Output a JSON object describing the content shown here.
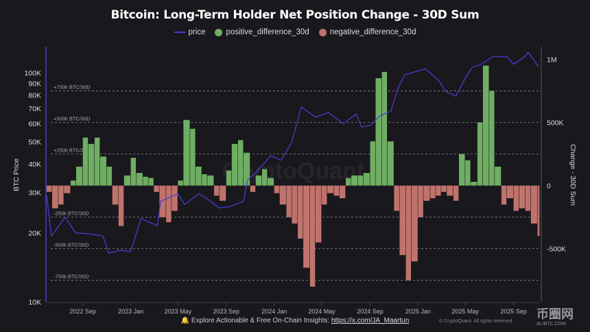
{
  "chart_data": {
    "type": "bar+line",
    "title": "Bitcoin: Long-Term Holder Net Position Change - 30D Sum",
    "legend": [
      {
        "name": "price",
        "color": "#4b3bd0",
        "marker": "line"
      },
      {
        "name": "positive_difference_30d",
        "color": "#6fae63",
        "marker": "circle"
      },
      {
        "name": "negative_difference_30d",
        "color": "#c0736c",
        "marker": "circle"
      }
    ],
    "legend_placement": "top-center",
    "left_axis": {
      "label": "BTC Price",
      "scale": "log",
      "range": [
        10000,
        130000
      ],
      "ticks": [
        {
          "v": 10000,
          "t": "10K"
        },
        {
          "v": 20000,
          "t": "20K"
        },
        {
          "v": 30000,
          "t": "30K"
        },
        {
          "v": 40000,
          "t": "40K"
        },
        {
          "v": 50000,
          "t": "50K"
        },
        {
          "v": 60000,
          "t": "60K"
        },
        {
          "v": 70000,
          "t": "70K"
        },
        {
          "v": 80000,
          "t": "80K"
        },
        {
          "v": 90000,
          "t": "90K"
        },
        {
          "v": 100000,
          "t": "100K"
        }
      ]
    },
    "right_axis": {
      "label": "Change - 30D Sum",
      "scale": "linear",
      "range": [
        -920000,
        1100000
      ],
      "ticks": [
        {
          "v": 1000000,
          "t": "1M"
        },
        {
          "v": 500000,
          "t": "500K"
        },
        {
          "v": 0,
          "t": "0"
        },
        {
          "v": -500000,
          "t": "-500K"
        }
      ]
    },
    "x_axis": {
      "range": [
        "2022-06-01",
        "2025-11-07"
      ],
      "ticks": [
        {
          "d": "2022-09-01",
          "t": "2022 Sep"
        },
        {
          "d": "2023-01-01",
          "t": "2023 Jan"
        },
        {
          "d": "2023-05-01",
          "t": "2023 May"
        },
        {
          "d": "2023-09-01",
          "t": "2023 Sep"
        },
        {
          "d": "2024-01-01",
          "t": "2024 Jan"
        },
        {
          "d": "2024-05-01",
          "t": "2024 May"
        },
        {
          "d": "2024-09-01",
          "t": "2024 Sep"
        },
        {
          "d": "2025-01-01",
          "t": "2025 Jan"
        },
        {
          "d": "2025-05-01",
          "t": "2025 May"
        },
        {
          "d": "2025-09-01",
          "t": "2025 Sep"
        }
      ]
    },
    "reference_lines": [
      {
        "v": 750000,
        "t": "+750k BTC/30D"
      },
      {
        "v": 500000,
        "t": "+500k BTC/30D"
      },
      {
        "v": 250000,
        "t": "+250k BTC/30D"
      },
      {
        "v": -250000,
        "t": "-250k BTC/30D"
      },
      {
        "v": -500000,
        "t": "-500k BTC/30D"
      },
      {
        "v": -750000,
        "t": "-750k BTC/30D"
      }
    ],
    "grid": false,
    "price": [
      [
        "2022-06-01",
        29000
      ],
      [
        "2022-06-13",
        19400
      ],
      [
        "2022-07-18",
        23400
      ],
      [
        "2022-08-14",
        20000
      ],
      [
        "2022-09-18",
        19800
      ],
      [
        "2022-10-22",
        19400
      ],
      [
        "2022-11-06",
        16300
      ],
      [
        "2022-12-05",
        16800
      ],
      [
        "2023-01-01",
        16600
      ],
      [
        "2023-01-27",
        23100
      ],
      [
        "2023-03-10",
        21500
      ],
      [
        "2023-03-18",
        27500
      ],
      [
        "2023-05-01",
        29600
      ],
      [
        "2023-05-18",
        26600
      ],
      [
        "2023-06-23",
        29600
      ],
      [
        "2023-07-10",
        28500
      ],
      [
        "2023-08-14",
        25700
      ],
      [
        "2023-09-10",
        26000
      ],
      [
        "2023-10-15",
        27500
      ],
      [
        "2023-10-25",
        34000
      ],
      [
        "2023-11-18",
        37000
      ],
      [
        "2023-12-23",
        43500
      ],
      [
        "2024-01-19",
        41500
      ],
      [
        "2024-02-15",
        50000
      ],
      [
        "2024-03-10",
        71000
      ],
      [
        "2024-04-15",
        64000
      ],
      [
        "2024-05-18",
        67000
      ],
      [
        "2024-06-24",
        60000
      ],
      [
        "2024-07-28",
        66000
      ],
      [
        "2024-08-10",
        58000
      ],
      [
        "2024-09-02",
        59000
      ],
      [
        "2024-09-27",
        65000
      ],
      [
        "2024-10-24",
        68000
      ],
      [
        "2024-11-10",
        85000
      ],
      [
        "2024-11-28",
        98000
      ],
      [
        "2024-12-24",
        101000
      ],
      [
        "2025-01-20",
        104000
      ],
      [
        "2025-02-24",
        92000
      ],
      [
        "2025-03-12",
        83000
      ],
      [
        "2025-04-07",
        79000
      ],
      [
        "2025-05-03",
        96000
      ],
      [
        "2025-05-20",
        106000
      ],
      [
        "2025-06-07",
        108000
      ],
      [
        "2025-07-12",
        118000
      ],
      [
        "2025-08-16",
        117000
      ],
      [
        "2025-09-01",
        109000
      ],
      [
        "2025-10-01",
        118000
      ],
      [
        "2025-10-08",
        123000
      ],
      [
        "2025-11-04",
        106000
      ]
    ],
    "change_30d": [
      [
        "2022-06-01",
        -50000
      ],
      [
        "2022-06-15",
        -180000
      ],
      [
        "2022-07-01",
        -150000
      ],
      [
        "2022-07-15",
        -60000
      ],
      [
        "2022-08-01",
        40000
      ],
      [
        "2022-08-15",
        150000
      ],
      [
        "2022-09-01",
        380000
      ],
      [
        "2022-09-15",
        330000
      ],
      [
        "2022-10-01",
        380000
      ],
      [
        "2022-10-15",
        230000
      ],
      [
        "2022-11-01",
        150000
      ],
      [
        "2022-11-15",
        -150000
      ],
      [
        "2022-12-01",
        -320000
      ],
      [
        "2022-12-15",
        80000
      ],
      [
        "2023-01-01",
        220000
      ],
      [
        "2023-01-15",
        100000
      ],
      [
        "2023-02-01",
        70000
      ],
      [
        "2023-02-15",
        60000
      ],
      [
        "2023-03-01",
        -50000
      ],
      [
        "2023-03-15",
        -250000
      ],
      [
        "2023-04-01",
        -290000
      ],
      [
        "2023-04-15",
        -200000
      ],
      [
        "2023-05-01",
        40000
      ],
      [
        "2023-05-15",
        520000
      ],
      [
        "2023-06-01",
        450000
      ],
      [
        "2023-06-15",
        150000
      ],
      [
        "2023-07-01",
        90000
      ],
      [
        "2023-07-15",
        80000
      ],
      [
        "2023-08-01",
        -80000
      ],
      [
        "2023-08-15",
        -120000
      ],
      [
        "2023-09-01",
        120000
      ],
      [
        "2023-09-15",
        330000
      ],
      [
        "2023-10-01",
        360000
      ],
      [
        "2023-10-15",
        260000
      ],
      [
        "2023-11-01",
        -50000
      ],
      [
        "2023-11-15",
        80000
      ],
      [
        "2023-12-01",
        130000
      ],
      [
        "2023-12-15",
        60000
      ],
      [
        "2024-01-01",
        -60000
      ],
      [
        "2024-01-15",
        -150000
      ],
      [
        "2024-02-01",
        -250000
      ],
      [
        "2024-02-15",
        -300000
      ],
      [
        "2024-03-01",
        -420000
      ],
      [
        "2024-03-15",
        -650000
      ],
      [
        "2024-04-01",
        -800000
      ],
      [
        "2024-04-15",
        -450000
      ],
      [
        "2024-05-01",
        -150000
      ],
      [
        "2024-05-15",
        -60000
      ],
      [
        "2024-06-01",
        -80000
      ],
      [
        "2024-06-15",
        -100000
      ],
      [
        "2024-07-01",
        60000
      ],
      [
        "2024-07-15",
        80000
      ],
      [
        "2024-08-01",
        80000
      ],
      [
        "2024-08-15",
        100000
      ],
      [
        "2024-09-01",
        350000
      ],
      [
        "2024-09-15",
        850000
      ],
      [
        "2024-10-01",
        900000
      ],
      [
        "2024-10-15",
        350000
      ],
      [
        "2024-11-01",
        -200000
      ],
      [
        "2024-11-15",
        -550000
      ],
      [
        "2024-12-01",
        -750000
      ],
      [
        "2024-12-15",
        -600000
      ],
      [
        "2025-01-01",
        -250000
      ],
      [
        "2025-01-15",
        -120000
      ],
      [
        "2025-02-01",
        -100000
      ],
      [
        "2025-02-15",
        -80000
      ],
      [
        "2025-03-01",
        -50000
      ],
      [
        "2025-03-15",
        -80000
      ],
      [
        "2025-04-01",
        -120000
      ],
      [
        "2025-04-15",
        250000
      ],
      [
        "2025-05-01",
        200000
      ],
      [
        "2025-05-15",
        30000
      ],
      [
        "2025-06-01",
        500000
      ],
      [
        "2025-06-15",
        950000
      ],
      [
        "2025-07-01",
        750000
      ],
      [
        "2025-07-15",
        150000
      ],
      [
        "2025-08-01",
        -150000
      ],
      [
        "2025-08-15",
        -100000
      ],
      [
        "2025-09-01",
        -200000
      ],
      [
        "2025-09-15",
        -180000
      ],
      [
        "2025-10-01",
        -200000
      ],
      [
        "2025-10-15",
        -300000
      ],
      [
        "2025-11-01",
        -400000
      ]
    ]
  },
  "watermark": "CryptoQuant",
  "footer": {
    "text": "Explore Actionable & Free On-Chain Insights:",
    "link": "https://x.com/JA_Maartun",
    "icon": "bell-icon"
  },
  "copyright": "© CryptoQuant. All rights reserved",
  "logo": {
    "name": "币圈网",
    "sub": "ALIBTC.COM"
  }
}
